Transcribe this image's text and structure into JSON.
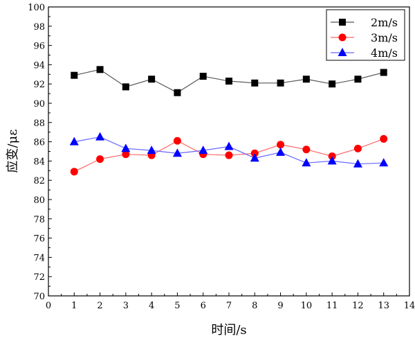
{
  "chart_data": {
    "type": "line",
    "title": "",
    "xlabel": "时间/s",
    "ylabel": "应变/με",
    "xlim": [
      0,
      14
    ],
    "ylim": [
      70,
      100
    ],
    "xticks": [
      0,
      1,
      2,
      3,
      4,
      5,
      6,
      7,
      8,
      9,
      10,
      11,
      12,
      13,
      14
    ],
    "yticks": [
      70,
      72,
      74,
      76,
      78,
      80,
      82,
      84,
      86,
      88,
      90,
      92,
      94,
      96,
      98,
      100
    ],
    "grid": false,
    "legend_position": "top-right",
    "x": [
      1,
      2,
      3,
      4,
      5,
      6,
      7,
      8,
      9,
      10,
      11,
      12,
      13
    ],
    "series": [
      {
        "name": "2m/s",
        "color": "#000000",
        "line_color": "#555555",
        "marker": "square",
        "values": [
          92.9,
          93.5,
          91.7,
          92.5,
          91.1,
          92.8,
          92.3,
          92.1,
          92.1,
          92.5,
          92.0,
          92.5,
          93.2
        ]
      },
      {
        "name": "3m/s",
        "color": "#ff0000",
        "line_color": "#ff6666",
        "marker": "circle",
        "values": [
          82.9,
          84.2,
          84.7,
          84.6,
          86.1,
          84.7,
          84.6,
          84.8,
          85.7,
          85.2,
          84.5,
          85.3,
          86.3
        ]
      },
      {
        "name": "4m/s",
        "color": "#0000ff",
        "line_color": "#6666ff",
        "marker": "triangle",
        "values": [
          86.0,
          86.5,
          85.3,
          85.1,
          84.8,
          85.1,
          85.5,
          84.3,
          84.9,
          83.8,
          84.0,
          83.7,
          83.8
        ]
      }
    ]
  }
}
